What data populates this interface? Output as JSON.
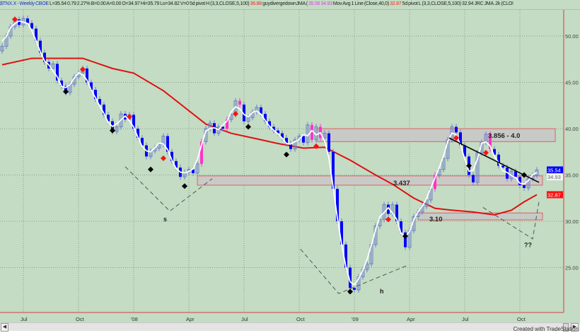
{
  "header": {
    "symbol": "$TNX.X - Weekly CBOE",
    "quote": "L=35.54 0.79 2.27% B=0.00 A=0.00 O=34.97 Hi=35.79 Lo=34.82 V=0",
    "ind1_name": "5d pivot H (3,3,CLOSE,5,100)",
    "ind1_value": "36.88",
    "ind2_name": "guydivergedownJMA (",
    "ind2_values": "35.56 34.93",
    "ind3_name": "Mov Avg 1 Line (Close,40,0)",
    "ind3_value": "32.87",
    "ind4_name": "5d pivot L (3,3,CLOSE,5,100)",
    "ind4_value": "32.94",
    "ind5_name": "JRC JMA .2k (CLO!"
  },
  "footer": "Created with TradeStation",
  "colors": {
    "background": "#c3dcc3",
    "down_candle": "#0000ff",
    "up_candle_outline": "#6f7fc8",
    "highlight_candle": "#ff33cc",
    "moving_average": "#e01010",
    "smoothed_line": "#ffffff",
    "zone_fill": "#c8c8c8",
    "zone_border": "#e06060",
    "trendline": "#000000"
  },
  "chart_data": {
    "type": "candlestick",
    "title": "",
    "x_tick_labels": [
      "Jul",
      "Oct",
      "'08",
      "Apr",
      "Jul",
      "Oct",
      "'09",
      "Apr",
      "Jul",
      "Oct"
    ],
    "x_tick_bars": [
      5,
      18,
      31,
      44,
      57,
      70,
      83,
      96,
      109,
      122
    ],
    "y_ticks": [
      25,
      30,
      35,
      40,
      45,
      50
    ],
    "y_tick_labels": [
      "25.00",
      "30.00",
      "35.00",
      "40.00",
      "45.00",
      "50.00"
    ],
    "ylim": [
      20.5,
      52.5
    ],
    "grid": true,
    "closes": [
      48.9,
      50.0,
      51.0,
      51.8,
      51.2,
      51.9,
      51.4,
      50.8,
      49.5,
      48.2,
      47.2,
      46.5,
      47.0,
      45.2,
      44.6,
      43.9,
      44.8,
      45.6,
      46.0,
      46.5,
      45.0,
      44.2,
      43.2,
      42.6,
      41.5,
      40.8,
      39.7,
      40.2,
      41.6,
      41.0,
      41.5,
      40.0,
      39.0,
      38.2,
      37.0,
      37.6,
      37.9,
      38.3,
      39.2,
      37.5,
      36.5,
      35.8,
      34.8,
      35.3,
      35.6,
      35.2,
      36.2,
      38.6,
      40.0,
      40.6,
      39.5,
      40.2,
      40.0,
      41.0,
      41.5,
      43.0,
      42.6,
      40.8,
      41.2,
      41.8,
      42.3,
      41.6,
      40.8,
      40.2,
      39.8,
      39.5,
      39.0,
      38.4,
      37.8,
      38.8,
      39.2,
      38.5,
      40.4,
      38.8,
      40.2,
      39.0,
      39.5,
      37.5,
      33.5,
      30.0,
      27.5,
      25.0,
      22.8,
      22.6,
      24.0,
      24.8,
      25.4,
      27.5,
      29.5,
      30.2,
      31.8,
      30.8,
      31.8,
      30.0,
      28.8,
      27.2,
      29.0,
      30.5,
      31.0,
      31.6,
      32.3,
      33.5,
      35.0,
      35.6,
      36.8,
      38.8,
      40.2,
      39.6,
      38.2,
      37.0,
      35.0,
      34.2,
      37.4,
      38.5,
      39.4,
      37.8,
      37.2,
      36.0,
      35.8,
      34.6,
      35.4,
      34.8,
      33.9,
      33.6,
      34.6,
      34.97,
      35.54
    ],
    "highlight_bars": [
      47,
      53,
      56,
      73,
      75,
      102,
      115
    ],
    "moving_average_40": {
      "label": "Mov Avg 1 Line (Close,40,0)",
      "points": [
        [
          0,
          46.9
        ],
        [
          7,
          47.6
        ],
        [
          19,
          47.6
        ],
        [
          26,
          46.5
        ],
        [
          31,
          46.0
        ],
        [
          38,
          44.1
        ],
        [
          43,
          42.3
        ],
        [
          48,
          40.5
        ],
        [
          54,
          39.5
        ],
        [
          60,
          38.9
        ],
        [
          65,
          38.4
        ],
        [
          71,
          37.9
        ],
        [
          76,
          38.0
        ],
        [
          82,
          36.6
        ],
        [
          88,
          35.0
        ],
        [
          92,
          34.0
        ],
        [
          97,
          32.5
        ],
        [
          102,
          31.4
        ],
        [
          106,
          31.2
        ],
        [
          111,
          31.0
        ],
        [
          116,
          30.7
        ],
        [
          120,
          31.2
        ],
        [
          123,
          32.1
        ],
        [
          126,
          32.87
        ]
      ]
    },
    "pivot_highs": [
      [
        3,
        51.8
      ],
      [
        19,
        46.4
      ],
      [
        30,
        41.3
      ],
      [
        38,
        36.8
      ],
      [
        55,
        41.6
      ],
      [
        74,
        38.1
      ],
      [
        91,
        30.2
      ],
      [
        107,
        39.0
      ],
      [
        114,
        37.4
      ]
    ],
    "pivot_lows": [
      [
        15,
        44.0
      ],
      [
        26,
        39.8
      ],
      [
        35,
        35.6
      ],
      [
        43,
        33.8
      ],
      [
        58,
        40.2
      ],
      [
        67,
        37.2
      ],
      [
        82,
        22.4
      ],
      [
        95,
        28.4
      ],
      [
        110,
        36.0
      ],
      [
        123,
        35.0
      ]
    ],
    "zones": [
      {
        "label": "3.856 - 4.0",
        "start_bar": 74,
        "top": 40.0,
        "bottom": 38.6
      },
      {
        "label": "3.437",
        "start_bar": 46,
        "top": 34.9,
        "bottom": 33.9
      },
      {
        "label": "3.10",
        "start_bar": 98,
        "top": 30.9,
        "bottom": 30.15
      }
    ],
    "trendline": [
      [
        105.3,
        39.0
      ],
      [
        126.5,
        34.2
      ]
    ],
    "pattern_lines": [
      {
        "label": "s",
        "points": [
          [
            29,
            35.9
          ],
          [
            39.5,
            31.1
          ],
          [
            49.5,
            34.6
          ]
        ],
        "label_at": [
          38,
          30.0
        ]
      },
      {
        "label": "h",
        "points": [
          [
            70.3,
            27.0
          ],
          [
            79.3,
            22.2
          ],
          [
            95.3,
            25.2
          ]
        ],
        "label_at": [
          89,
          22.2
        ]
      },
      {
        "label": "??",
        "points": [
          [
            113.3,
            31.5
          ],
          [
            125,
            28.1
          ],
          [
            126.5,
            32.1
          ]
        ],
        "label_at": [
          123,
          27.2
        ]
      }
    ],
    "price_badges": [
      {
        "value": "35.54",
        "price": 35.54,
        "bg": "#0000ff",
        "fg": "#ffffff"
      },
      {
        "value": "34.93",
        "price": 34.8,
        "bg": "#f4f4f4",
        "fg": "#666666"
      },
      {
        "value": "32.87",
        "price": 32.87,
        "bg": "#ff1010",
        "fg": "#ffffff"
      }
    ]
  }
}
